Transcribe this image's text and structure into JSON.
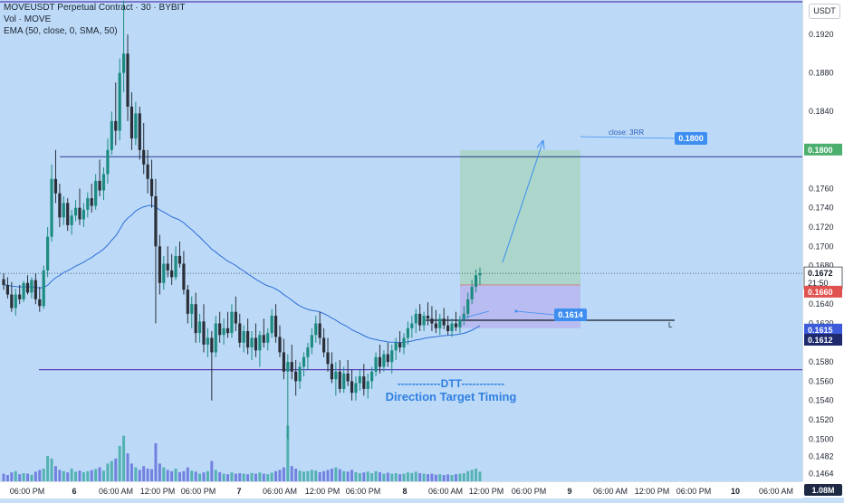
{
  "header": {
    "line1": "MOVEUSDT Perpetual Contract · 30 · BYBIT",
    "line2": "Vol · MOVE",
    "line3": "EMA (50, close, 0, SMA, 50)"
  },
  "currency_button": "USDT",
  "annotations": {
    "target_label": "close: 3RR",
    "target_price": "0.1800",
    "entry_tag": "0.1614",
    "stop_tag": "L",
    "dtt_title": "------------DTT------------",
    "dtt_subtitle": "Direction Target Timing"
  },
  "price_tags": {
    "target": "0.1800",
    "last": "0.1672",
    "countdown": "21:50",
    "entry": "0.1660",
    "level_a": "0.1615",
    "level_b": "0.1612",
    "volume": "1.08M"
  },
  "colors": {
    "background": "#bcdaf8",
    "up_candle": "#1c8c80",
    "down_candle": "#2a2f37",
    "ema": "#2e6dd6",
    "horizontal_line": "#2c3a8e",
    "purple_line": "#5b3fb3",
    "profit_zone": "#a9d4c4",
    "loss_zone": "#b7b8ee",
    "accent": "#3d8ef0",
    "target_tag": "#4caf6e",
    "entry_tag": "#e0524f"
  },
  "chart_data": {
    "type": "candlestick",
    "title": "MOVEUSDT Perpetual Contract · 30 · BYBIT",
    "price_axis_ticks": [
      "0.1920",
      "0.1880",
      "0.1840",
      "0.1800",
      "0.1760",
      "0.1740",
      "0.1720",
      "0.1700",
      "0.1680",
      "0.1660",
      "0.1640",
      "0.1620",
      "0.1600",
      "0.1580",
      "0.1560",
      "0.1540",
      "0.1520",
      "0.1500",
      "0.1482",
      "0.1464"
    ],
    "time_axis_ticks": [
      "06:00 PM",
      "6",
      "06:00 AM",
      "12:00 PM",
      "06:00 PM",
      "7",
      "06:00 AM",
      "12:00 PM",
      "06:00 PM",
      "8",
      "06:00 AM",
      "12:00 PM",
      "06:00 PM",
      "9",
      "06:00 AM",
      "12:00 PM",
      "06:00 PM",
      "10",
      "06:00 AM"
    ],
    "ylim": [
      0.1455,
      0.1955
    ],
    "horizontal_levels": [
      {
        "name": "resistance",
        "value": 0.1793
      },
      {
        "name": "support",
        "value": 0.1572
      },
      {
        "name": "top",
        "value": 0.1955
      }
    ],
    "position": {
      "type": "long",
      "entry": 0.166,
      "target": 0.18,
      "stop": 0.1615,
      "ratio_label": "close: 3RR"
    },
    "ema_period": 50,
    "last_price": 0.1672,
    "ohlc": [
      [
        0.1666,
        0.1672,
        0.1655,
        0.166
      ],
      [
        0.166,
        0.1668,
        0.1646,
        0.165
      ],
      [
        0.165,
        0.1663,
        0.1632,
        0.1636
      ],
      [
        0.1636,
        0.1656,
        0.1628,
        0.165
      ],
      [
        0.165,
        0.166,
        0.164,
        0.1645
      ],
      [
        0.1645,
        0.1664,
        0.1642,
        0.1662
      ],
      [
        0.1662,
        0.167,
        0.165,
        0.1652
      ],
      [
        0.1652,
        0.1668,
        0.1646,
        0.1665
      ],
      [
        0.1665,
        0.1672,
        0.164,
        0.1645
      ],
      [
        0.1645,
        0.1658,
        0.1632,
        0.1638
      ],
      [
        0.1638,
        0.168,
        0.1635,
        0.1675
      ],
      [
        0.1675,
        0.172,
        0.1668,
        0.171
      ],
      [
        0.171,
        0.1785,
        0.1705,
        0.177
      ],
      [
        0.177,
        0.18,
        0.1745,
        0.1755
      ],
      [
        0.1755,
        0.1765,
        0.172,
        0.173
      ],
      [
        0.173,
        0.1752,
        0.1722,
        0.1745
      ],
      [
        0.1745,
        0.175,
        0.1716,
        0.1722
      ],
      [
        0.1722,
        0.1738,
        0.1712,
        0.1732
      ],
      [
        0.1732,
        0.1748,
        0.1726,
        0.174
      ],
      [
        0.174,
        0.176,
        0.1722,
        0.1728
      ],
      [
        0.1728,
        0.1745,
        0.172,
        0.1738
      ],
      [
        0.1738,
        0.1756,
        0.173,
        0.175
      ],
      [
        0.175,
        0.1765,
        0.1735,
        0.1742
      ],
      [
        0.1742,
        0.1775,
        0.1738,
        0.1768
      ],
      [
        0.1768,
        0.179,
        0.1752,
        0.1758
      ],
      [
        0.1758,
        0.1782,
        0.1748,
        0.1775
      ],
      [
        0.1775,
        0.1812,
        0.1765,
        0.18
      ],
      [
        0.18,
        0.184,
        0.1795,
        0.183
      ],
      [
        0.183,
        0.187,
        0.1805,
        0.182
      ],
      [
        0.182,
        0.1895,
        0.181,
        0.188
      ],
      [
        0.188,
        0.1955,
        0.186,
        0.19
      ],
      [
        0.19,
        0.192,
        0.183,
        0.1845
      ],
      [
        0.1845,
        0.186,
        0.18,
        0.1812
      ],
      [
        0.1812,
        0.185,
        0.1805,
        0.1838
      ],
      [
        0.1838,
        0.1845,
        0.179,
        0.18
      ],
      [
        0.18,
        0.1828,
        0.1775,
        0.1785
      ],
      [
        0.1785,
        0.18,
        0.1755,
        0.177
      ],
      [
        0.177,
        0.179,
        0.174,
        0.1752
      ],
      [
        0.1752,
        0.177,
        0.162,
        0.17
      ],
      [
        0.17,
        0.1712,
        0.165,
        0.1662
      ],
      [
        0.1662,
        0.169,
        0.1655,
        0.1682
      ],
      [
        0.1682,
        0.17,
        0.1668,
        0.1675
      ],
      [
        0.1675,
        0.1692,
        0.166,
        0.1668
      ],
      [
        0.1668,
        0.17,
        0.1665,
        0.169
      ],
      [
        0.169,
        0.1705,
        0.1678,
        0.1682
      ],
      [
        0.1682,
        0.1695,
        0.165,
        0.1655
      ],
      [
        0.1655,
        0.166,
        0.162,
        0.163
      ],
      [
        0.163,
        0.1648,
        0.1615,
        0.164
      ],
      [
        0.164,
        0.1652,
        0.16,
        0.161
      ],
      [
        0.161,
        0.163,
        0.16,
        0.1622
      ],
      [
        0.1622,
        0.164,
        0.159,
        0.1598
      ],
      [
        0.1598,
        0.1615,
        0.1585,
        0.1605
      ],
      [
        0.1605,
        0.1612,
        0.154,
        0.159
      ],
      [
        0.159,
        0.1628,
        0.1585,
        0.162
      ],
      [
        0.162,
        0.1632,
        0.16,
        0.1608
      ],
      [
        0.1608,
        0.1625,
        0.1598,
        0.1615
      ],
      [
        0.1615,
        0.1632,
        0.1605,
        0.161
      ],
      [
        0.161,
        0.164,
        0.1605,
        0.1632
      ],
      [
        0.1632,
        0.1648,
        0.1612,
        0.162
      ],
      [
        0.162,
        0.163,
        0.1595,
        0.16
      ],
      [
        0.16,
        0.1618,
        0.159,
        0.1612
      ],
      [
        0.1612,
        0.1625,
        0.1588,
        0.1595
      ],
      [
        0.1595,
        0.1612,
        0.1582,
        0.1605
      ],
      [
        0.1605,
        0.162,
        0.1585,
        0.1592
      ],
      [
        0.1592,
        0.1612,
        0.1575,
        0.1608
      ],
      [
        0.1608,
        0.1625,
        0.1595,
        0.16
      ],
      [
        0.16,
        0.1615,
        0.1592,
        0.161
      ],
      [
        0.161,
        0.1635,
        0.1605,
        0.1628
      ],
      [
        0.1628,
        0.164,
        0.16,
        0.1606
      ],
      [
        0.1606,
        0.1618,
        0.1585,
        0.159
      ],
      [
        0.159,
        0.1604,
        0.1562,
        0.157
      ],
      [
        0.157,
        0.1588,
        0.15,
        0.158
      ],
      [
        0.158,
        0.1598,
        0.1562,
        0.157
      ],
      [
        0.157,
        0.1582,
        0.1545,
        0.156
      ],
      [
        0.156,
        0.158,
        0.1552,
        0.1575
      ],
      [
        0.1575,
        0.159,
        0.1565,
        0.1585
      ],
      [
        0.1585,
        0.16,
        0.1572,
        0.1595
      ],
      [
        0.1595,
        0.1615,
        0.1588,
        0.1608
      ],
      [
        0.1608,
        0.1628,
        0.16,
        0.162
      ],
      [
        0.162,
        0.1632,
        0.1598,
        0.1605
      ],
      [
        0.1605,
        0.1615,
        0.1585,
        0.159
      ],
      [
        0.159,
        0.1605,
        0.157,
        0.1578
      ],
      [
        0.1578,
        0.159,
        0.1558,
        0.1562
      ],
      [
        0.1562,
        0.158,
        0.1545,
        0.157
      ],
      [
        0.157,
        0.1582,
        0.1548,
        0.1552
      ],
      [
        0.1552,
        0.1575,
        0.1548,
        0.1568
      ],
      [
        0.1568,
        0.1582,
        0.1555,
        0.156
      ],
      [
        0.156,
        0.1572,
        0.154,
        0.1548
      ],
      [
        0.1548,
        0.1565,
        0.154,
        0.1558
      ],
      [
        0.1558,
        0.1572,
        0.155,
        0.1565
      ],
      [
        0.1565,
        0.1578,
        0.1545,
        0.1552
      ],
      [
        0.1552,
        0.1568,
        0.1542,
        0.156
      ],
      [
        0.156,
        0.1575,
        0.1552,
        0.157
      ],
      [
        0.157,
        0.159,
        0.1565,
        0.1585
      ],
      [
        0.1585,
        0.1598,
        0.1568,
        0.1575
      ],
      [
        0.1575,
        0.1592,
        0.157,
        0.1588
      ],
      [
        0.1588,
        0.16,
        0.1575,
        0.158
      ],
      [
        0.158,
        0.1598,
        0.1568,
        0.1592
      ],
      [
        0.1592,
        0.1605,
        0.1582,
        0.16
      ],
      [
        0.16,
        0.1612,
        0.159,
        0.1595
      ],
      [
        0.1595,
        0.161,
        0.1588,
        0.1605
      ],
      [
        0.1605,
        0.1622,
        0.1598,
        0.1615
      ],
      [
        0.1615,
        0.1628,
        0.1605,
        0.162
      ],
      [
        0.162,
        0.1635,
        0.161,
        0.163
      ],
      [
        0.163,
        0.164,
        0.1612,
        0.1618
      ],
      [
        0.1618,
        0.1632,
        0.1612,
        0.1628
      ],
      [
        0.1628,
        0.1642,
        0.1618,
        0.1625
      ],
      [
        0.1625,
        0.1638,
        0.1612,
        0.162
      ],
      [
        0.162,
        0.1634,
        0.161,
        0.1615
      ],
      [
        0.1615,
        0.163,
        0.1608,
        0.1625
      ],
      [
        0.1625,
        0.1636,
        0.1614,
        0.1618
      ],
      [
        0.1618,
        0.1628,
        0.1608,
        0.1612
      ],
      [
        0.1612,
        0.1625,
        0.1606,
        0.162
      ],
      [
        0.162,
        0.1632,
        0.1612,
        0.1616
      ],
      [
        0.1616,
        0.1628,
        0.161,
        0.1624
      ],
      [
        0.1624,
        0.1638,
        0.1618,
        0.163
      ],
      [
        0.163,
        0.1652,
        0.1625,
        0.1645
      ],
      [
        0.1645,
        0.1665,
        0.164,
        0.1658
      ],
      [
        0.1658,
        0.1676,
        0.1652,
        0.167
      ],
      [
        0.167,
        0.1678,
        0.166,
        0.1672
      ]
    ],
    "volume": [
      0.3,
      0.25,
      0.35,
      0.4,
      0.28,
      0.32,
      0.3,
      0.26,
      0.38,
      0.45,
      0.5,
      1.0,
      0.9,
      0.6,
      0.45,
      0.4,
      0.35,
      0.5,
      0.38,
      0.42,
      0.36,
      0.4,
      0.44,
      0.48,
      0.55,
      0.42,
      0.7,
      0.8,
      0.9,
      1.4,
      1.8,
      1.1,
      0.7,
      0.55,
      0.45,
      0.6,
      0.5,
      0.48,
      1.5,
      0.7,
      0.55,
      0.45,
      0.4,
      0.5,
      0.36,
      0.4,
      0.55,
      0.42,
      0.38,
      0.3,
      0.35,
      0.4,
      0.8,
      0.45,
      0.36,
      0.3,
      0.28,
      0.35,
      0.3,
      0.32,
      0.3,
      0.28,
      0.33,
      0.3,
      0.35,
      0.3,
      0.28,
      0.34,
      0.4,
      0.45,
      0.55,
      2.2,
      0.6,
      0.5,
      0.42,
      0.38,
      0.4,
      0.45,
      0.42,
      0.36,
      0.4,
      0.45,
      0.5,
      0.55,
      0.48,
      0.4,
      0.38,
      0.45,
      0.36,
      0.32,
      0.35,
      0.38,
      0.32,
      0.4,
      0.36,
      0.3,
      0.34,
      0.3,
      0.32,
      0.28,
      0.3,
      0.35,
      0.33,
      0.38,
      0.32,
      0.3,
      0.28,
      0.3,
      0.26,
      0.28,
      0.25,
      0.27,
      0.25,
      0.28,
      0.3,
      0.32,
      0.4,
      0.45,
      0.5,
      0.38
    ]
  }
}
